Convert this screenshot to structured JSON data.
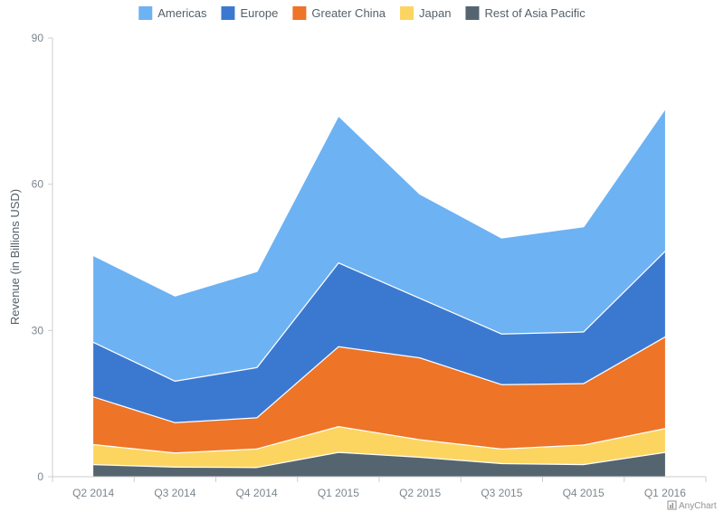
{
  "chart_data": {
    "type": "area",
    "stacked": true,
    "categories": [
      "Q2 2014",
      "Q3 2014",
      "Q4 2014",
      "Q1 2015",
      "Q2 2015",
      "Q3 2015",
      "Q4 2015",
      "Q1 2016"
    ],
    "series": [
      {
        "name": "Rest of Asia Pacific",
        "color": "#546570",
        "values": [
          2.6,
          2.1,
          2.0,
          5.1,
          4.1,
          2.8,
          2.6,
          5.1
        ]
      },
      {
        "name": "Japan",
        "color": "#fcd561",
        "values": [
          4.1,
          2.9,
          3.8,
          5.3,
          3.6,
          3.0,
          4.0,
          4.9
        ]
      },
      {
        "name": "Greater China",
        "color": "#ee7427",
        "values": [
          9.8,
          6.2,
          6.4,
          16.4,
          16.8,
          13.2,
          12.6,
          18.8
        ]
      },
      {
        "name": "Europe",
        "color": "#3b79d1",
        "values": [
          11.2,
          8.5,
          10.3,
          17.2,
          12.2,
          10.4,
          10.6,
          17.6
        ]
      },
      {
        "name": "Americas",
        "color": "#6db2f3",
        "values": [
          17.8,
          17.5,
          19.7,
          30.2,
          21.4,
          19.7,
          21.6,
          29.2
        ]
      }
    ],
    "legend_order": [
      "Americas",
      "Europe",
      "Greater China",
      "Japan",
      "Rest of Asia Pacific"
    ],
    "ylabel": "Revenue (in Billions USD)",
    "xlabel": "",
    "ylim": [
      0,
      90
    ],
    "yticks": [
      "0",
      "30",
      "60",
      "90"
    ],
    "grid": false,
    "legend_position": "top"
  },
  "credit": {
    "label": "AnyChart"
  }
}
